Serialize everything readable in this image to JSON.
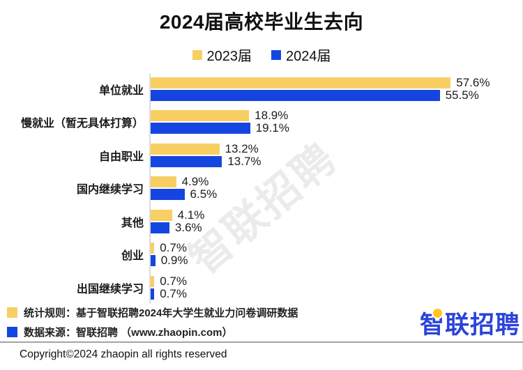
{
  "title": "2024届高校毕业生去向",
  "legend": [
    {
      "label": "2023届",
      "color": "#F7CF63"
    },
    {
      "label": "2024届",
      "color": "#1545E1"
    }
  ],
  "chart_data": {
    "type": "bar",
    "orientation": "horizontal",
    "title": "2024届高校毕业生去向",
    "categories": [
      "单位就业",
      "慢就业（暂无具体打算）",
      "自由职业",
      "国内继续学习",
      "其他",
      "创业",
      "出国继续学习"
    ],
    "series": [
      {
        "name": "2023届",
        "color": "#F7CF63",
        "values": [
          57.6,
          18.9,
          13.2,
          4.9,
          4.1,
          0.7,
          0.7
        ]
      },
      {
        "name": "2024届",
        "color": "#1545E1",
        "values": [
          55.5,
          19.1,
          13.7,
          6.5,
          3.6,
          0.9,
          0.7
        ]
      }
    ],
    "value_suffix": "%",
    "xlim": [
      0,
      60
    ],
    "grid": false,
    "legend_position": "top"
  },
  "watermark": {
    "text": "智联招聘"
  },
  "footnotes": [
    {
      "color": "#F7CF63",
      "text": "统计规则：基于智联招聘2024年大学生就业力问卷调研数据"
    },
    {
      "color": "#1545E1",
      "text": "数据来源：智联招聘 （www.zhaopin.com）"
    }
  ],
  "logo": {
    "text": "智联招聘"
  },
  "copyright": "Copyright©2024 zhaopin all rights reserved"
}
